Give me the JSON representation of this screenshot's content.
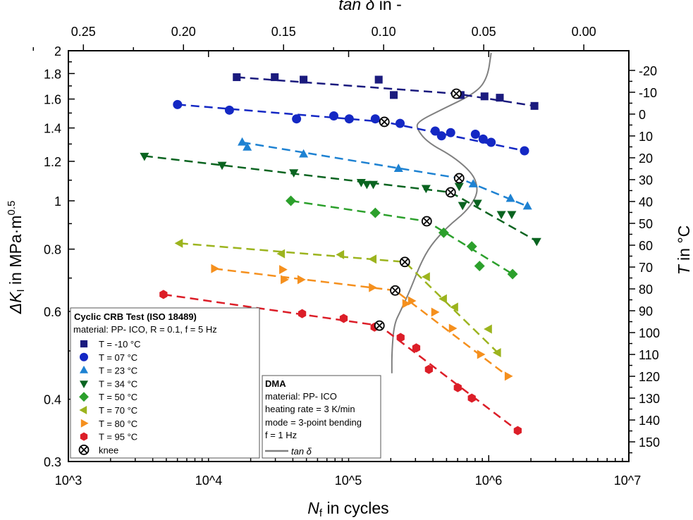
{
  "chart_data": {
    "type": "scatter",
    "x_axis": {
      "label_main": "N",
      "label_sub": "f",
      "label_rest": " in cycles",
      "scale": "log",
      "range": [
        1000,
        10000000
      ],
      "ticks": [
        1000,
        10000,
        100000,
        1000000,
        10000000
      ],
      "tick_labels": [
        "10^3",
        "10^4",
        "10^5",
        "10^6",
        "10^7"
      ]
    },
    "y_axis": {
      "label_main": "ΔK",
      "label_sub": "I",
      "label_rest": " in MPa·m",
      "label_sup": "0.5",
      "scale": "log",
      "range": [
        0.3,
        2
      ],
      "ticks": [
        0.3,
        0.4,
        0.6,
        0.8,
        1,
        1.2,
        1.4,
        1.6,
        1.8,
        2
      ],
      "tick_labels": [
        "0.3",
        "0.4",
        "0.6",
        "0.8",
        "1",
        "1.2",
        "1.4",
        "1.6",
        "1.8",
        "2"
      ]
    },
    "top_axis": {
      "label_main": "tan δ",
      "label_rest": " in -",
      "scale": "linear",
      "range": [
        0.2575,
        -0.0225
      ],
      "ticks": [
        0.25,
        0.2,
        0.15,
        0.1,
        0.05,
        0.0
      ],
      "tick_labels": [
        "0.25",
        "0.20",
        "0.15",
        "0.10",
        "0.05",
        "0.00"
      ]
    },
    "right_axis": {
      "label_main": "T",
      "label_rest": " in °C",
      "scale": "linear",
      "range": [
        -29,
        159
      ],
      "ticks": [
        -20,
        -10,
        0,
        10,
        20,
        30,
        40,
        50,
        60,
        70,
        80,
        90,
        100,
        110,
        120,
        130,
        140,
        150
      ],
      "tick_labels": [
        "-20",
        "-10",
        "0",
        "10",
        "20",
        "30",
        "40",
        "50",
        "60",
        "70",
        "80",
        "90",
        "100",
        "110",
        "120",
        "130",
        "140",
        "150"
      ]
    },
    "grid": false,
    "series": [
      {
        "name": "T = -10 °C",
        "marker": "square",
        "color": "#1b1b7e",
        "x": [
          15900,
          29700,
          47700,
          164000,
          210000,
          587000,
          630000,
          933000,
          1200000,
          2120000
        ],
        "y": [
          1.77,
          1.77,
          1.75,
          1.75,
          1.63,
          1.64,
          1.63,
          1.62,
          1.61,
          1.55
        ],
        "knee": [
          587000,
          1.64
        ]
      },
      {
        "name": "T = 07 °C",
        "marker": "circle",
        "color": "#1428c4",
        "x": [
          6010,
          14100,
          42500,
          78400,
          101000,
          155000,
          233000,
          415000,
          460000,
          535000,
          803000,
          912000,
          1040000,
          1800000
        ],
        "y": [
          1.56,
          1.52,
          1.46,
          1.48,
          1.46,
          1.46,
          1.43,
          1.38,
          1.35,
          1.37,
          1.36,
          1.33,
          1.31,
          1.26
        ],
        "knee": [
          180000,
          1.44
        ]
      },
      {
        "name": "T = 23 °C",
        "marker": "triangle-up",
        "color": "#1e82d2",
        "x": [
          17400,
          18900,
          47700,
          227000,
          775000,
          1430000,
          1890000
        ],
        "y": [
          1.31,
          1.28,
          1.24,
          1.16,
          1.08,
          1.01,
          0.975
        ],
        "knee": [
          615000,
          1.11
        ]
      },
      {
        "name": "T = 34 °C",
        "marker": "triangle-down",
        "color": "#0a6420",
        "x": [
          3490,
          12500,
          40600,
          123000,
          135000,
          150000,
          357000,
          615000,
          651000,
          831000,
          1230000,
          1460000,
          2200000
        ],
        "y": [
          1.23,
          1.18,
          1.14,
          1.09,
          1.08,
          1.08,
          1.06,
          1.07,
          0.98,
          0.99,
          0.94,
          0.94,
          0.83
        ],
        "knee": [
          535000,
          1.04
        ]
      },
      {
        "name": "T = 50 °C",
        "marker": "diamond",
        "color": "#2ca02c",
        "x": [
          38700,
          155000,
          477000,
          757000,
          860000,
          1480000
        ],
        "y": [
          1.0,
          0.946,
          0.863,
          0.81,
          0.74,
          0.713
        ],
        "knee": [
          361000,
          0.91
        ]
      },
      {
        "name": "T = 70 °C",
        "marker": "triangle-left",
        "color": "#9cb41e",
        "x": [
          6220,
          33300,
          88100,
          150000,
          361000,
          477000,
          574000,
          1000000,
          1160000
        ],
        "y": [
          0.822,
          0.783,
          0.78,
          0.764,
          0.704,
          0.636,
          0.612,
          0.553,
          0.496
        ],
        "knee": [
          252000,
          0.754
        ]
      },
      {
        "name": "T = 80 °C",
        "marker": "triangle-right",
        "color": "#f5901e",
        "x": [
          11000,
          33700,
          34500,
          45500,
          147000,
          255000,
          280000,
          410000,
          548000,
          871000,
          1370000
        ],
        "y": [
          0.731,
          0.728,
          0.695,
          0.695,
          0.67,
          0.622,
          0.63,
          0.598,
          0.555,
          0.492,
          0.445
        ],
        "knee": [
          215000,
          0.661
        ]
      },
      {
        "name": "T = 95 °C",
        "marker": "hexagon",
        "color": "#dc1e28",
        "x": [
          4770,
          46600,
          92200,
          153000,
          235000,
          304000,
          374000,
          601000,
          757000,
          1610000
        ],
        "y": [
          0.649,
          0.594,
          0.581,
          0.558,
          0.532,
          0.507,
          0.459,
          0.422,
          0.402,
          0.346
        ],
        "knee": [
          166000,
          0.562
        ]
      }
    ],
    "dma_curve": {
      "name": "tan δ",
      "color": "#808080",
      "tan_delta": [
        0.0463,
        0.0481,
        0.0537,
        0.0716,
        0.0828,
        0.0836,
        0.078,
        0.0653,
        0.0556,
        0.053,
        0.0541,
        0.0593,
        0.0679,
        0.0765,
        0.0817,
        0.0866,
        0.0914,
        0.0948,
        0.0959,
        0.0959
      ],
      "T": [
        -28.0,
        -16.8,
        -9.8,
        -1.8,
        3.4,
        6.6,
        13.0,
        19.4,
        27.1,
        33.5,
        38.6,
        45.0,
        51.4,
        60.0,
        68.7,
        80.2,
        89.8,
        96.2,
        109.0,
        118.6
      ]
    }
  },
  "legend_crb": {
    "title": "Cyclic CRB Test (ISO 18489)",
    "subtitle": "material: PP- ICO, R = 0.1, f = 5 Hz",
    "items": [
      "T = -10 °C",
      "T = 07 °C",
      "T = 23 °C",
      "T = 34 °C",
      "T = 50 °C",
      "T = 70 °C",
      "T = 80 °C",
      "T = 95 °C",
      "knee"
    ]
  },
  "legend_dma": {
    "title": "DMA",
    "lines": [
      "material: PP- ICO",
      "heating rate = 3 K/min",
      "mode = 3-point bending",
      "f = 1 Hz"
    ],
    "curve_label": "tan δ"
  }
}
